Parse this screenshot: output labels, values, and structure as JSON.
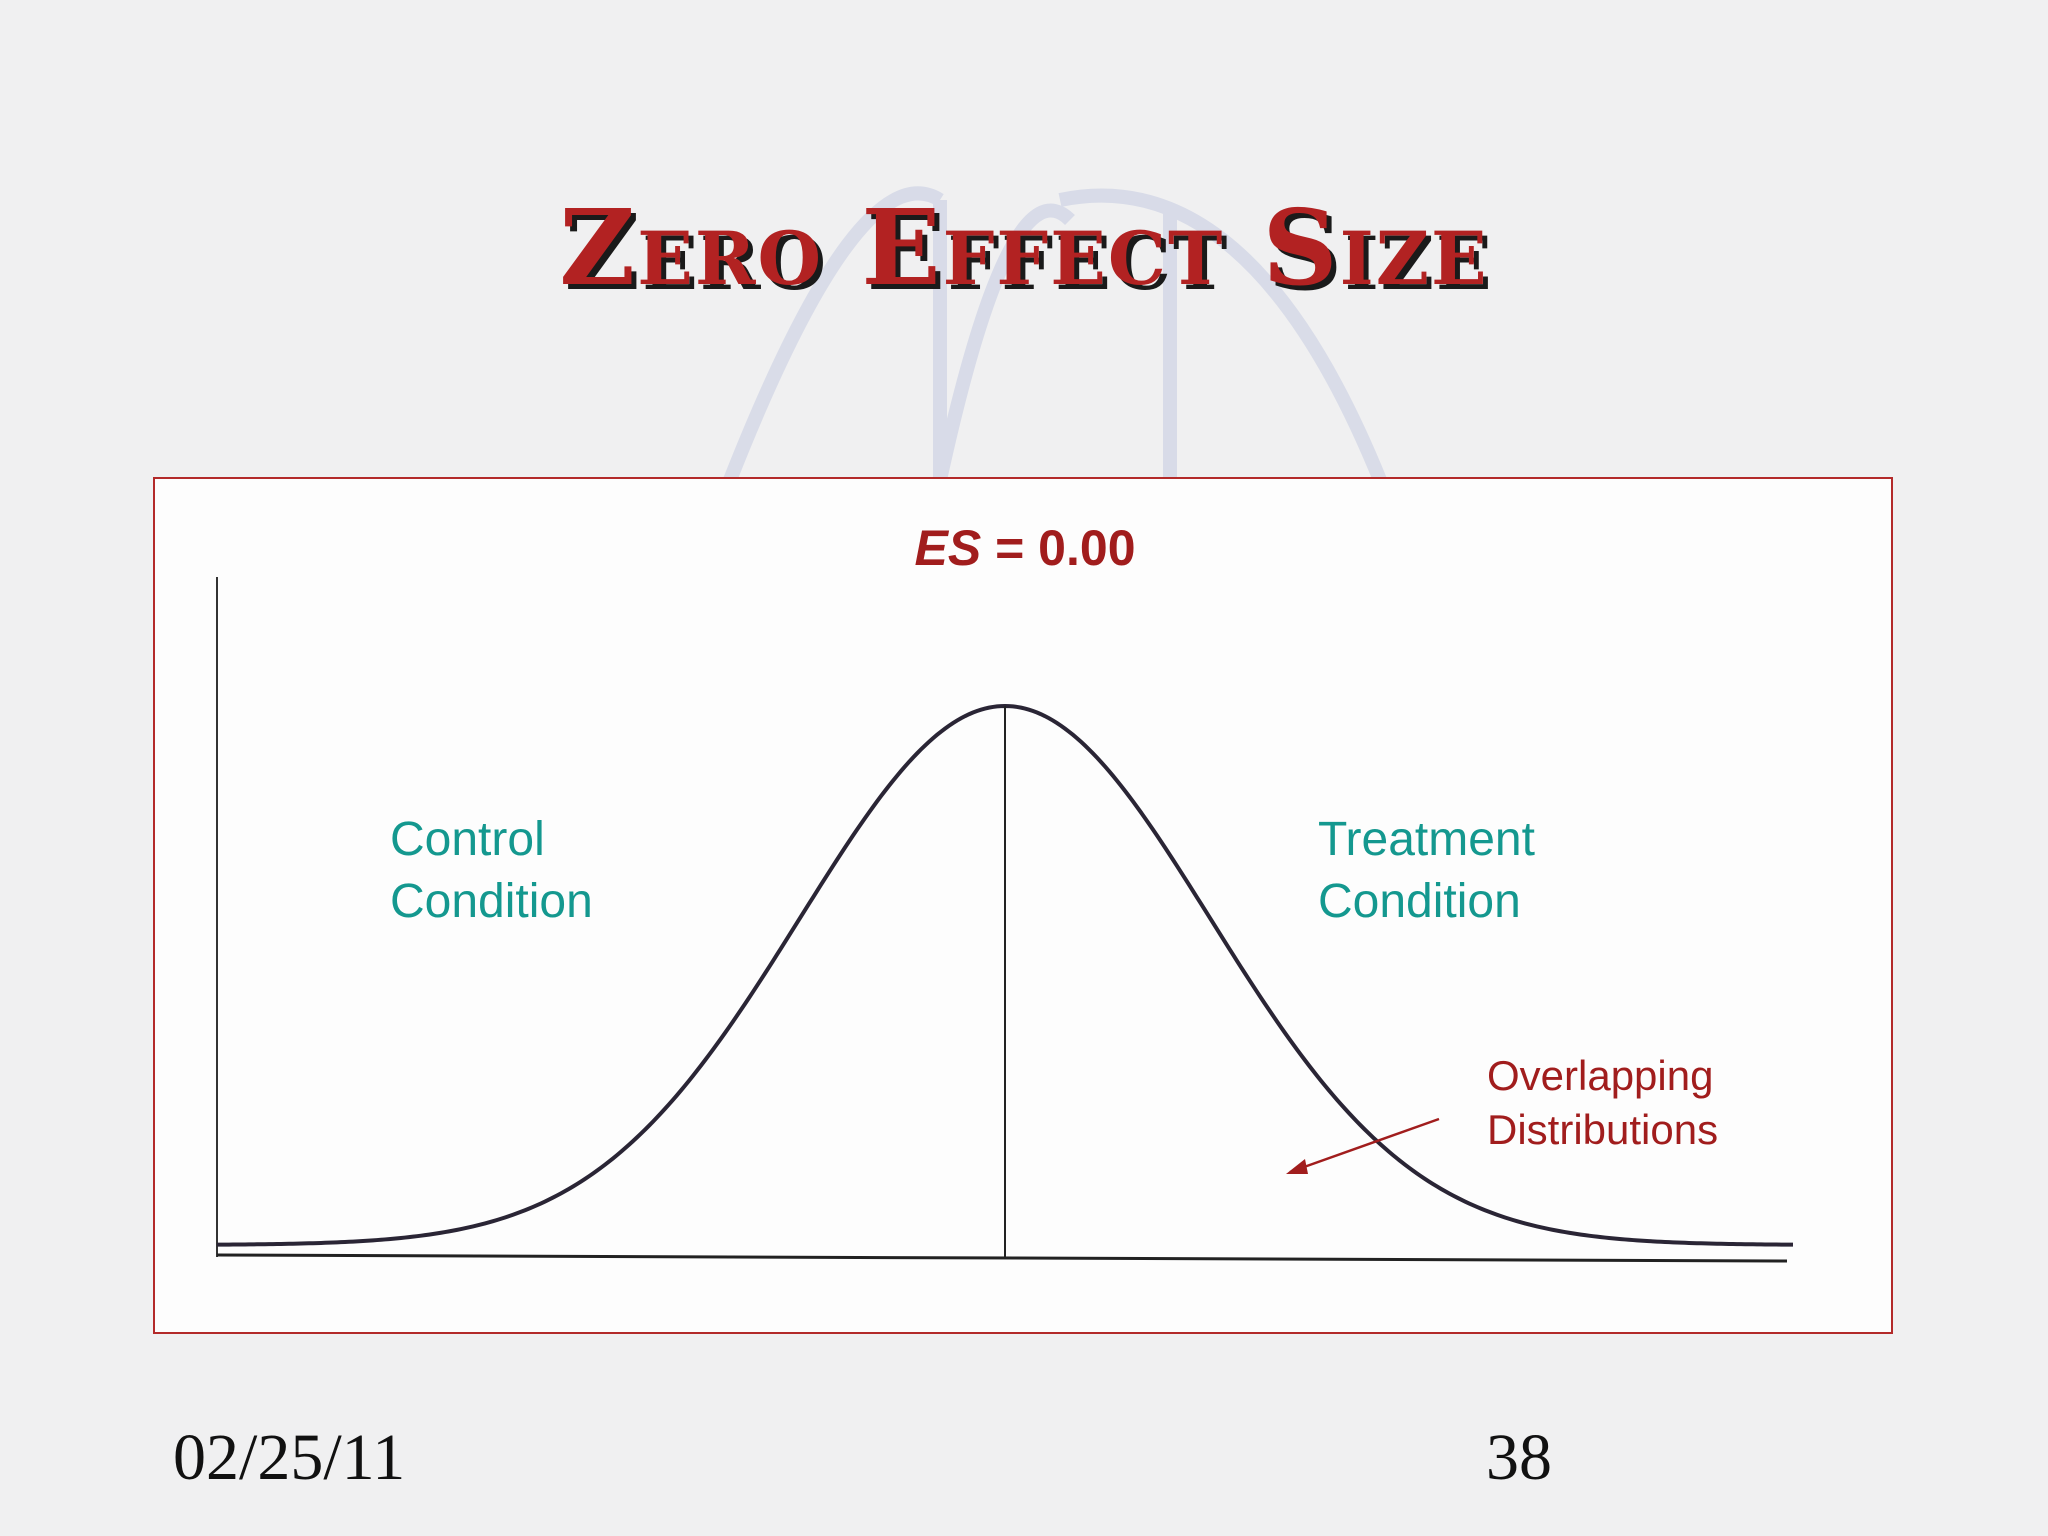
{
  "slide": {
    "title": "Zero Effect Size",
    "date": "02/25/11",
    "page_number": "38"
  },
  "diagram": {
    "es_var": "ES",
    "es_rest": " = 0.00",
    "control_line1": "Control",
    "control_line2": "Condition",
    "treatment_line1": "Treatment",
    "treatment_line2": "Condition",
    "overlap_line1": "Overlapping",
    "overlap_line2": "Distributions",
    "curve_shape": "normal distribution",
    "effect_size": 0.0
  },
  "colors": {
    "title": "#b22222",
    "label_teal": "#14988f",
    "label_red": "#a11d1d",
    "frame": "#b32a2a"
  }
}
